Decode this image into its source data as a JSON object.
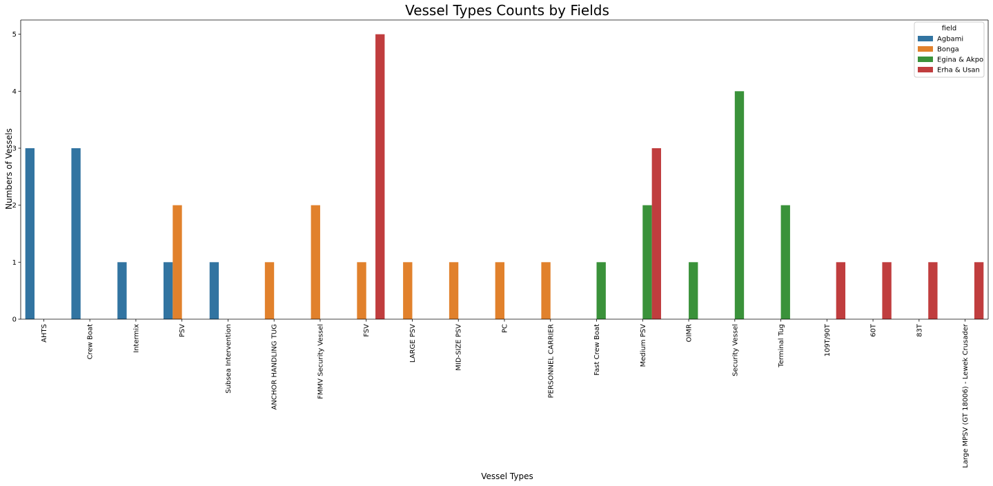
{
  "chart_data": {
    "type": "bar",
    "title": "Vessel Types Counts by Fields",
    "xlabel": "Vessel Types",
    "ylabel": "Numbers of Vessels",
    "ylim": [
      0,
      5.25
    ],
    "yticks": [
      0,
      1,
      2,
      3,
      4,
      5
    ],
    "grid": false,
    "legend_placement": "top-right",
    "legend_title": "field",
    "categories": [
      "AHTS",
      "Crew Boat",
      "Intermix",
      "PSV",
      "Subsea Intervention",
      "ANCHOR HANDLING TUG",
      "FMMV Security Vessel",
      "FSV",
      "LARGE PSV",
      "MID-SIZE PSV",
      "PC",
      "PERSONNEL CARRIER",
      "Fast Crew Boat",
      "Medium PSV",
      "OIMR",
      "Security Vessel",
      "Terminal Tug",
      "109T/90T",
      "60T",
      "83T",
      "Large MPSV (GT 18006) -  Lewek Crusader"
    ],
    "series": [
      {
        "name": "Agbami",
        "color": "#3274a1",
        "values": [
          3,
          3,
          1,
          1,
          1,
          null,
          null,
          null,
          null,
          null,
          null,
          null,
          null,
          null,
          null,
          null,
          null,
          null,
          null,
          null,
          null
        ]
      },
      {
        "name": "Bonga",
        "color": "#e1812c",
        "values": [
          null,
          null,
          null,
          2,
          null,
          1,
          2,
          1,
          1,
          1,
          1,
          1,
          null,
          null,
          null,
          null,
          null,
          null,
          null,
          null,
          null
        ]
      },
      {
        "name": "Egina & Akpo",
        "color": "#3a923a",
        "values": [
          null,
          null,
          null,
          null,
          null,
          null,
          null,
          null,
          null,
          null,
          null,
          null,
          1,
          2,
          1,
          4,
          2,
          null,
          null,
          null,
          null
        ]
      },
      {
        "name": "Erha & Usan",
        "color": "#c03d3e",
        "values": [
          null,
          null,
          null,
          null,
          null,
          null,
          null,
          5,
          null,
          null,
          null,
          null,
          null,
          3,
          null,
          null,
          null,
          1,
          1,
          1,
          1
        ]
      }
    ]
  }
}
